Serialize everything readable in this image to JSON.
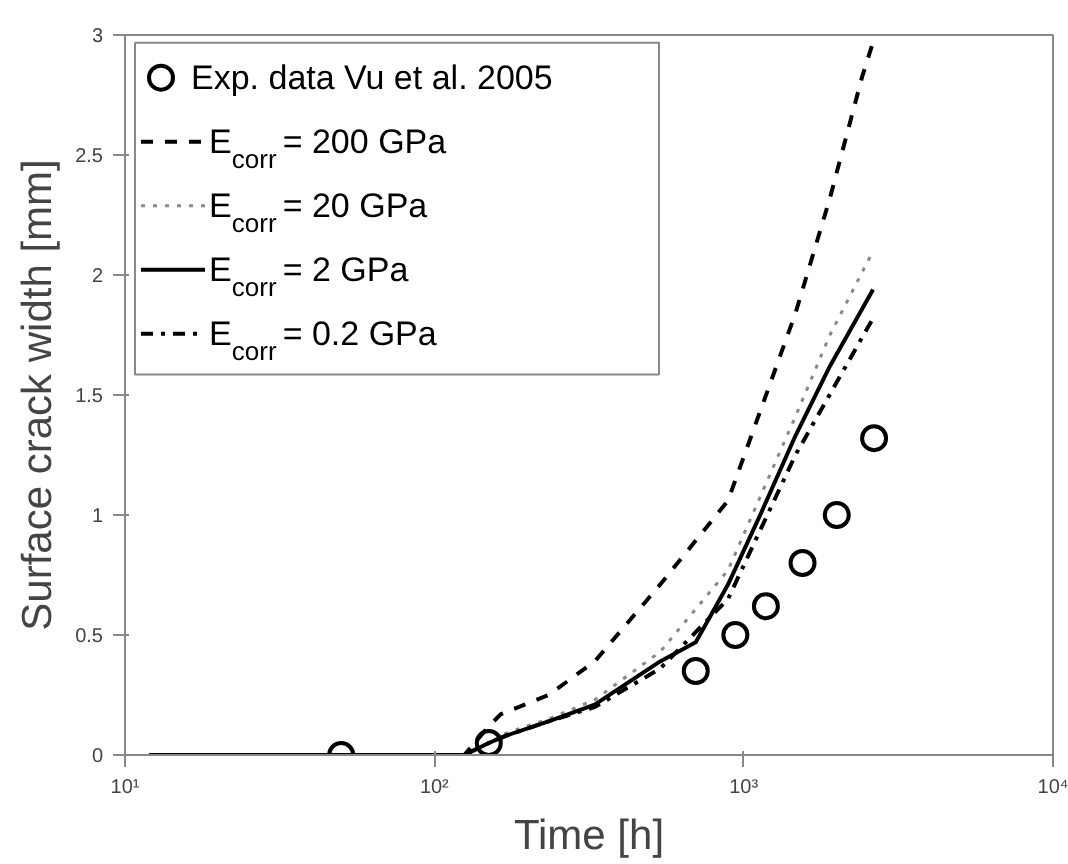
{
  "chart_data": {
    "type": "line",
    "xlabel": "Time [h]",
    "ylabel": "Surface crack width [mm]",
    "log": "x",
    "xlim": [
      10,
      10000
    ],
    "ylim": [
      0,
      3
    ],
    "xticks": [
      {
        "value": 10,
        "label": "10¹"
      },
      {
        "value": 100,
        "label": "10²"
      },
      {
        "value": 1000,
        "label": "10³"
      },
      {
        "value": 10000,
        "label": "10⁴"
      }
    ],
    "yticks": [
      0,
      0.5,
      1,
      1.5,
      2,
      2.5,
      3
    ],
    "grid": false,
    "legend": "top left",
    "marker": "none",
    "series": [
      {
        "name": "Exp. data Vu et al. 2005",
        "type": "scatter",
        "marker": "circle",
        "color": "#000000",
        "x": [
          50,
          150,
          700,
          940,
          1180,
          1550,
          2000,
          2640
        ],
        "values": [
          0,
          0.05,
          0.35,
          0.5,
          0.62,
          0.8,
          1.0,
          1.32
        ]
      },
      {
        "name": "E$_{corr}$ = 200 GPa",
        "color": "#000000",
        "line_style": "dashed",
        "x": [
          12,
          125,
          150,
          164,
          234,
          330,
          537,
          890,
          1470,
          1900,
          2420,
          2620
        ],
        "values": [
          0,
          0,
          0.12,
          0.17,
          0.25,
          0.39,
          0.71,
          1.06,
          1.84,
          2.32,
          2.83,
          2.97
        ]
      },
      {
        "name": "E$_{corr}$ = 20 GPa",
        "color": "#888888",
        "line_style": "dotted",
        "x": [
          12,
          125,
          150,
          170,
          234,
          330,
          537,
          890,
          1470,
          1900,
          2620
        ],
        "values": [
          0,
          0,
          0.05,
          0.09,
          0.15,
          0.23,
          0.43,
          0.77,
          1.41,
          1.75,
          2.1
        ]
      },
      {
        "name": "E$_{corr}$ = 2 GPa",
        "color": "#000000",
        "line_style": "solid",
        "x": [
          12,
          125,
          150,
          170,
          234,
          330,
          537,
          700,
          890,
          1140,
          1470,
          1900,
          2620
        ],
        "values": [
          0,
          0,
          0.05,
          0.08,
          0.14,
          0.21,
          0.39,
          0.47,
          0.71,
          1.01,
          1.33,
          1.62,
          1.94
        ]
      },
      {
        "name": "E$_{corr}$ = 0.2 GPa",
        "color": "#000000",
        "line_style": "dashdot",
        "x": [
          12,
          125,
          150,
          170,
          234,
          330,
          537,
          890,
          1470,
          2620
        ],
        "values": [
          0,
          0,
          0.05,
          0.08,
          0.14,
          0.2,
          0.36,
          0.65,
          1.25,
          1.82
        ]
      }
    ]
  }
}
